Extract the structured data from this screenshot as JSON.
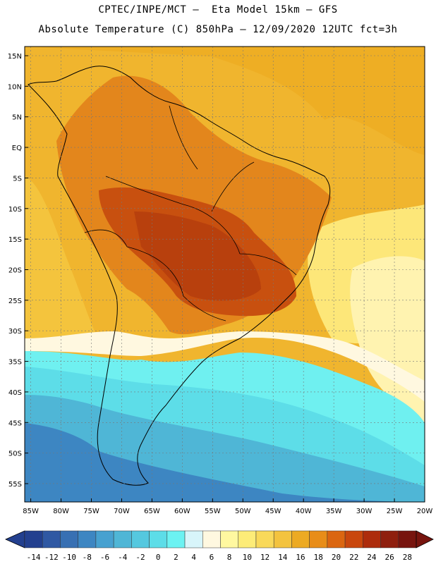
{
  "header": {
    "line1": "CPTEC/INPE/MCT —  Eta Model 15km — GFS",
    "line2": "Absolute Temperature (C) 850hPa — 12/09/2020 12UTC fct=3h"
  },
  "axes": {
    "lat_labels": [
      "15N",
      "10N",
      "5N",
      "EQ",
      "5S",
      "10S",
      "15S",
      "20S",
      "25S",
      "30S",
      "35S",
      "40S",
      "45S",
      "50S",
      "55S"
    ],
    "lon_labels": [
      "85W",
      "80W",
      "75W",
      "70W",
      "65W",
      "60W",
      "55W",
      "50W",
      "45W",
      "40W",
      "35W",
      "30W",
      "25W",
      "20W"
    ],
    "lat_values": [
      15,
      10,
      5,
      0,
      -5,
      -10,
      -15,
      -20,
      -25,
      -30,
      -35,
      -40,
      -45,
      -50,
      -55
    ],
    "lon_values": [
      -85,
      -80,
      -75,
      -70,
      -65,
      -60,
      -55,
      -50,
      -45,
      -40,
      -35,
      -30,
      -25,
      -20
    ],
    "lat_range": [
      -58,
      16.5
    ],
    "lon_range": [
      -86,
      -20
    ]
  },
  "colorbar": {
    "labels": [
      "-14",
      "-12",
      "-10",
      "-8",
      "-6",
      "-4",
      "-2",
      "0",
      "2",
      "4",
      "6",
      "8",
      "10",
      "12",
      "14",
      "16",
      "18",
      "20",
      "22",
      "24",
      "26",
      "28"
    ],
    "colors": [
      "#23408f",
      "#2f58a3",
      "#3870b3",
      "#3d86c2",
      "#47a1d0",
      "#4fb6d6",
      "#55c8df",
      "#5ddde8",
      "#6cf2f2",
      "#d8f5fa",
      "#fff8e0",
      "#fff8a0",
      "#fdec78",
      "#f9d95a",
      "#f3c33f",
      "#ecaa23",
      "#e88d18",
      "#db6610",
      "#c9470d",
      "#ad2c0c",
      "#8f1f0e",
      "#77140e"
    ]
  }
}
